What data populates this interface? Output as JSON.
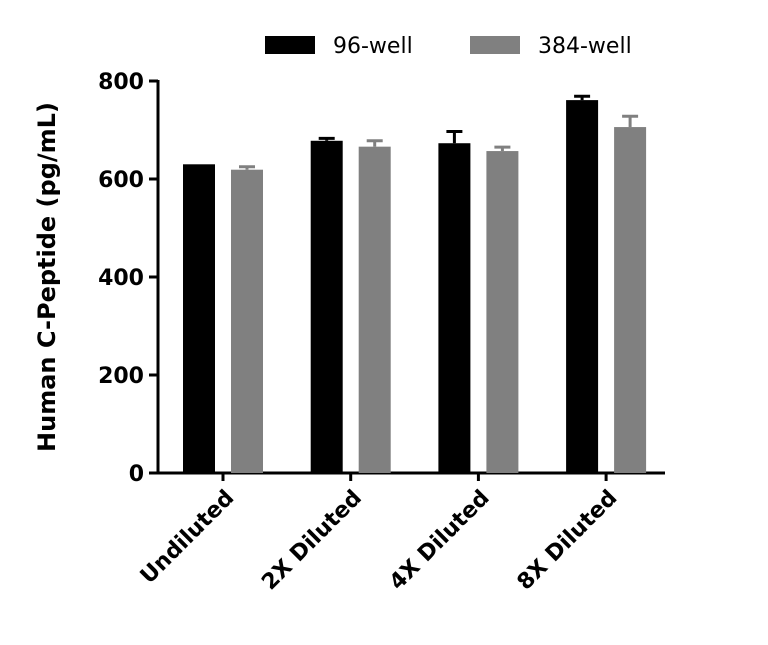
{
  "chart_data": {
    "type": "bar",
    "title": "",
    "xlabel": "",
    "ylabel": "Human C-Peptide (pg/mL)",
    "ylim": [
      0,
      800
    ],
    "yticks": [
      0,
      200,
      400,
      600,
      800
    ],
    "grid": false,
    "legend_position": "top",
    "categories": [
      "Undiluted",
      "2X Diluted",
      "4X Diluted",
      "8X Diluted"
    ],
    "series": [
      {
        "name": "96-well",
        "color": "#000000",
        "values": [
          630,
          678,
          673,
          761
        ],
        "errors": [
          0,
          5,
          24,
          8
        ]
      },
      {
        "name": "384-well",
        "color": "#808080",
        "values": [
          619,
          666,
          657,
          706
        ],
        "errors": [
          6,
          12,
          8,
          22
        ]
      }
    ]
  }
}
